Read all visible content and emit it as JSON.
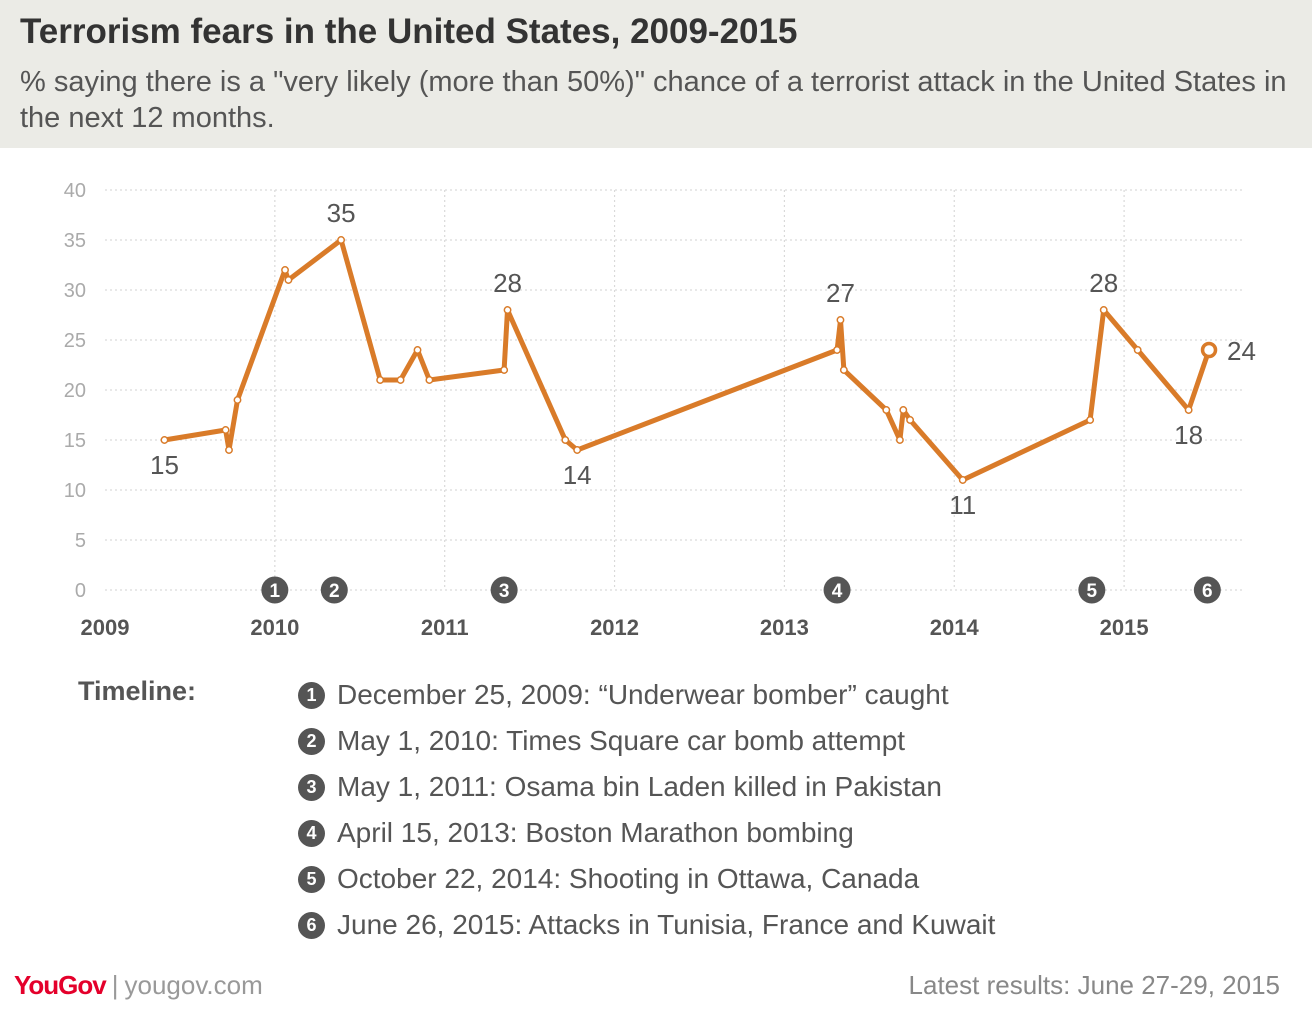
{
  "header": {
    "title": "Terrorism fears in the United States, 2009-2015",
    "subtitle": "% saying there is a \"very likely (more than 50%)\" chance of a terrorist attack in the United States in the next 12 months."
  },
  "chart_data": {
    "type": "line",
    "title": "Terrorism fears in the United States, 2009-2015",
    "xlabel": "",
    "ylabel": "",
    "ylim": [
      0,
      40
    ],
    "yticks": [
      0,
      5,
      10,
      15,
      20,
      25,
      30,
      35,
      40
    ],
    "xlim": [
      2009.0,
      2015.7
    ],
    "xticks": [
      "2009",
      "2010",
      "2011",
      "2012",
      "2013",
      "2014",
      "2015"
    ],
    "grid": true,
    "line_color": "#d97b29",
    "series": [
      {
        "points": [
          {
            "x": 2009.35,
            "y": 15
          },
          {
            "x": 2009.71,
            "y": 16
          },
          {
            "x": 2009.73,
            "y": 14
          },
          {
            "x": 2009.78,
            "y": 19
          },
          {
            "x": 2010.06,
            "y": 32
          },
          {
            "x": 2010.08,
            "y": 31
          },
          {
            "x": 2010.39,
            "y": 35
          },
          {
            "x": 2010.62,
            "y": 21
          },
          {
            "x": 2010.74,
            "y": 21
          },
          {
            "x": 2010.84,
            "y": 24
          },
          {
            "x": 2010.91,
            "y": 21
          },
          {
            "x": 2011.35,
            "y": 22
          },
          {
            "x": 2011.37,
            "y": 28
          },
          {
            "x": 2011.71,
            "y": 15
          },
          {
            "x": 2011.78,
            "y": 14
          },
          {
            "x": 2013.31,
            "y": 24
          },
          {
            "x": 2013.33,
            "y": 27
          },
          {
            "x": 2013.35,
            "y": 22
          },
          {
            "x": 2013.6,
            "y": 18
          },
          {
            "x": 2013.68,
            "y": 15
          },
          {
            "x": 2013.7,
            "y": 18
          },
          {
            "x": 2013.74,
            "y": 17
          },
          {
            "x": 2014.05,
            "y": 11
          },
          {
            "x": 2014.8,
            "y": 17
          },
          {
            "x": 2014.88,
            "y": 28
          },
          {
            "x": 2015.08,
            "y": 24
          },
          {
            "x": 2015.38,
            "y": 18
          },
          {
            "x": 2015.5,
            "y": 24
          }
        ]
      }
    ],
    "data_labels": [
      {
        "x": 2009.35,
        "y": 15,
        "text": "15",
        "pos": "below"
      },
      {
        "x": 2010.39,
        "y": 35,
        "text": "35",
        "pos": "above"
      },
      {
        "x": 2011.37,
        "y": 28,
        "text": "28",
        "pos": "above"
      },
      {
        "x": 2011.78,
        "y": 14,
        "text": "14",
        "pos": "below"
      },
      {
        "x": 2013.33,
        "y": 27,
        "text": "27",
        "pos": "above"
      },
      {
        "x": 2014.05,
        "y": 11,
        "text": "11",
        "pos": "below"
      },
      {
        "x": 2014.88,
        "y": 28,
        "text": "28",
        "pos": "above"
      },
      {
        "x": 2015.38,
        "y": 18,
        "text": "18",
        "pos": "below"
      },
      {
        "x": 2015.5,
        "y": 24,
        "text": "24",
        "pos": "right"
      }
    ],
    "events": [
      {
        "x": 2010.0,
        "n": "1"
      },
      {
        "x": 2010.35,
        "n": "2"
      },
      {
        "x": 2011.35,
        "n": "3"
      },
      {
        "x": 2013.31,
        "n": "4"
      },
      {
        "x": 2014.81,
        "n": "5"
      },
      {
        "x": 2015.49,
        "n": "6"
      }
    ]
  },
  "timeline": {
    "label": "Timeline:",
    "items": [
      {
        "num": "1",
        "text": "December 25, 2009: “Underwear bomber” caught"
      },
      {
        "num": "2",
        "text": "May 1, 2010: Times Square car bomb attempt"
      },
      {
        "num": "3",
        "text": "May 1, 2011: Osama bin Laden killed in Pakistan"
      },
      {
        "num": "4",
        "text": "April 15, 2013: Boston Marathon bombing"
      },
      {
        "num": "5",
        "text": "October 22, 2014: Shooting in Ottawa, Canada"
      },
      {
        "num": "6",
        "text": "June 26, 2015: Attacks in Tunisia, France and Kuwait"
      }
    ]
  },
  "footer": {
    "brand": "YouGov",
    "separator": "|",
    "site": "yougov.com",
    "latest": "Latest results:  June  27-29, 2015"
  }
}
